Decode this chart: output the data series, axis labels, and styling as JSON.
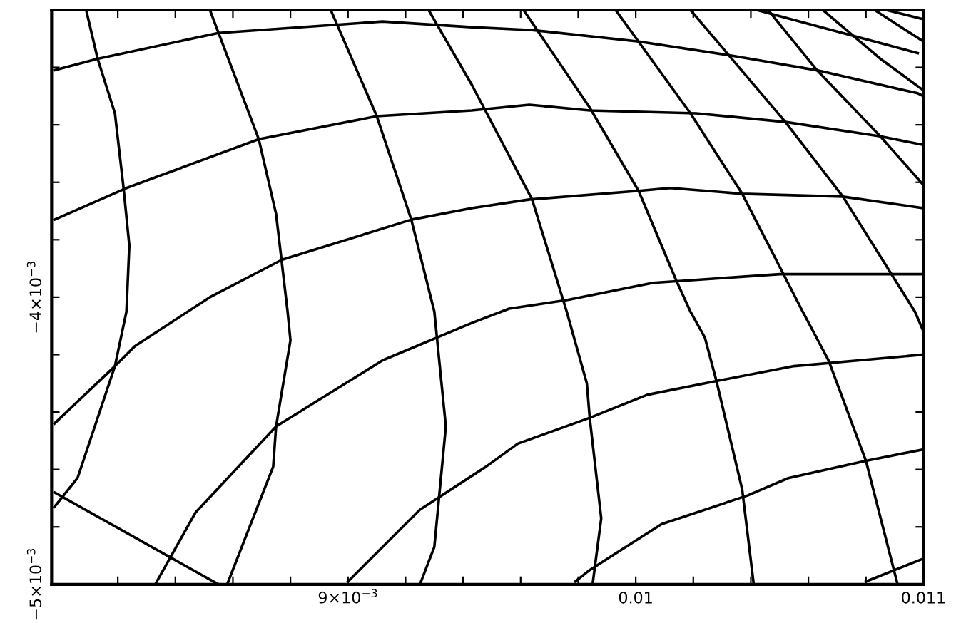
{
  "chart_data": {
    "type": "line",
    "xlim": [
      0.00797,
      0.011
    ],
    "ylim": [
      -0.005,
      -0.003
    ],
    "xticks": [
      {
        "value": 0.0082,
        "label": null
      },
      {
        "value": 0.0084,
        "label": null
      },
      {
        "value": 0.0086,
        "label": null
      },
      {
        "value": 0.0088,
        "label": null
      },
      {
        "value": 0.009,
        "label": "9×10$^{−3}$"
      },
      {
        "value": 0.0092,
        "label": null
      },
      {
        "value": 0.0094,
        "label": null
      },
      {
        "value": 0.0096,
        "label": null
      },
      {
        "value": 0.0098,
        "label": null
      },
      0.01,
      {
        "value": 0.0102,
        "label": null
      },
      {
        "value": 0.0104,
        "label": null
      },
      {
        "value": 0.0106,
        "label": null
      },
      {
        "value": 0.0108,
        "label": null
      },
      0.011
    ],
    "yticks": [
      {
        "value": -0.005,
        "label": "−5×10$^{−3}$"
      },
      {
        "value": -0.0048,
        "label": null
      },
      {
        "value": -0.0046,
        "label": null
      },
      {
        "value": -0.0044,
        "label": null
      },
      {
        "value": -0.0042,
        "label": null
      },
      {
        "value": -0.004,
        "label": "−4×10$^{−3}$"
      },
      {
        "value": -0.0038,
        "label": null
      },
      {
        "value": -0.0036,
        "label": null
      },
      {
        "value": -0.0034,
        "label": null
      },
      {
        "value": -0.0032,
        "label": null
      }
    ],
    "grid": false,
    "legend": false,
    "marker": "none",
    "line_style": "solid",
    "series": [
      {
        "color": "#000000",
        "x": [
          0.01042,
          0.01098
        ],
        "values": [
          -0.003,
          -0.00315
        ]
      },
      {
        "color": "#000000",
        "x": [
          0.01087,
          0.01099
        ],
        "values": [
          -0.003,
          -0.00303
        ]
      },
      {
        "color": "#000000",
        "x": [
          0.00798,
          0.00813,
          0.00855,
          0.00912,
          0.00943,
          0.00964,
          0.01001,
          0.01034,
          0.01063,
          0.01098,
          0.011
        ],
        "values": [
          -0.00321,
          -0.00317,
          -0.00308,
          -0.00304,
          -0.00306,
          -0.00307,
          -0.00311,
          -0.00316,
          -0.00321,
          -0.00329,
          -0.0033
        ]
      },
      {
        "color": "#000000",
        "x": [
          0.00798,
          0.00823,
          0.00869,
          0.0091,
          0.00943,
          0.00963,
          0.00984,
          0.01021,
          0.01052,
          0.01085,
          0.011
        ],
        "values": [
          -0.00373,
          -0.00362,
          -0.00345,
          -0.00337,
          -0.00335,
          -0.00333,
          -0.00335,
          -0.00336,
          -0.00339,
          -0.00344,
          -0.00347
        ]
      },
      {
        "color": "#000000",
        "x": [
          0.00798,
          0.00819,
          0.00826,
          0.00852,
          0.00877,
          0.00922,
          0.00943,
          0.00963,
          0.01001,
          0.01012,
          0.01037,
          0.01072,
          0.011
        ],
        "values": [
          -0.00444,
          -0.00424,
          -0.00417,
          -0.004,
          -0.00387,
          -0.00373,
          -0.00369,
          -0.00366,
          -0.00363,
          -0.00362,
          -0.00364,
          -0.00365,
          -0.00369
        ]
      },
      {
        "color": "#000000",
        "x": [
          0.00833,
          0.00847,
          0.00875,
          0.00912,
          0.00943,
          0.00956,
          0.00976,
          0.01006,
          0.0105,
          0.01062,
          0.011
        ],
        "values": [
          -0.005,
          -0.00475,
          -0.00445,
          -0.00422,
          -0.00409,
          -0.00404,
          -0.00401,
          -0.00395,
          -0.00392,
          -0.00392,
          -0.00392
        ]
      },
      {
        "color": "#000000",
        "x": [
          0.009,
          0.00925,
          0.00948,
          0.00959,
          0.00984,
          0.01004,
          0.01029,
          0.01055,
          0.011
        ],
        "values": [
          -0.00499,
          -0.00474,
          -0.00459,
          -0.00451,
          -0.00442,
          -0.00434,
          -0.00429,
          -0.00424,
          -0.0042
        ]
      },
      {
        "color": "#000000",
        "x": [
          0.00979,
          0.00984,
          0.01009,
          0.01039,
          0.01053,
          0.0108,
          0.011
        ],
        "values": [
          -0.00499,
          -0.00495,
          -0.00479,
          -0.00469,
          -0.00463,
          -0.00457,
          -0.00453
        ]
      },
      {
        "color": "#000000",
        "x": [
          0.0108,
          0.0109,
          0.011
        ],
        "values": [
          -0.00499,
          -0.00495,
          -0.00491
        ]
      },
      {
        "color": "#000000",
        "x": [
          0.00798,
          0.00855
        ],
        "values": [
          -0.00468,
          -0.005
        ]
      },
      {
        "color": "#000000",
        "x": [
          0.00809,
          0.00813,
          0.00819,
          0.00822,
          0.00824,
          0.00823,
          0.00819,
          0.00806,
          0.00798
        ],
        "values": [
          -0.003,
          -0.00317,
          -0.00336,
          -0.00362,
          -0.00382,
          -0.00405,
          -0.00424,
          -0.00463,
          -0.00473
        ]
      },
      {
        "color": "#000000",
        "x": [
          0.00852,
          0.00855,
          0.00869,
          0.00875,
          0.00879,
          0.0088,
          0.00875,
          0.00874,
          0.00858
        ],
        "values": [
          -0.003,
          -0.00308,
          -0.00345,
          -0.00371,
          -0.00405,
          -0.00415,
          -0.00445,
          -0.00459,
          -0.005
        ]
      },
      {
        "color": "#000000",
        "x": [
          0.00894,
          0.0091,
          0.00922,
          0.0093,
          0.00931,
          0.00934,
          0.0093,
          0.00925
        ],
        "values": [
          -0.003,
          -0.00337,
          -0.00373,
          -0.00405,
          -0.00415,
          -0.00445,
          -0.00487,
          -0.005
        ]
      },
      {
        "color": "#000000",
        "x": [
          0.00928,
          0.00943,
          0.00964,
          0.00976,
          0.00983,
          0.00984,
          0.00988,
          0.00985
        ],
        "values": [
          -0.003,
          -0.00326,
          -0.00366,
          -0.00405,
          -0.0043,
          -0.00442,
          -0.00477,
          -0.005
        ]
      },
      {
        "color": "#000000",
        "x": [
          0.00961,
          0.00984,
          0.01001,
          0.01014,
          0.01019,
          0.01024,
          0.01028,
          0.01037,
          0.01041
        ],
        "values": [
          -0.003,
          -0.00334,
          -0.00363,
          -0.00394,
          -0.00405,
          -0.00414,
          -0.00429,
          -0.00467,
          -0.005
        ]
      },
      {
        "color": "#000000",
        "x": [
          0.00993,
          0.01019,
          0.01037,
          0.01058,
          0.01067,
          0.0108,
          0.01091
        ],
        "values": [
          -0.003,
          -0.00336,
          -0.00364,
          -0.00405,
          -0.00422,
          -0.00457,
          -0.005
        ]
      },
      {
        "color": "#000000",
        "x": [
          0.01019,
          0.01052,
          0.01072,
          0.01097,
          0.011
        ],
        "values": [
          -0.003,
          -0.00339,
          -0.00365,
          -0.00405,
          -0.00412
        ]
      },
      {
        "color": "#000000",
        "x": [
          0.01046,
          0.01063,
          0.01085,
          0.011
        ],
        "values": [
          -0.003,
          -0.00321,
          -0.00344,
          -0.00361
        ]
      },
      {
        "color": "#000000",
        "x": [
          0.01065,
          0.01085,
          0.011
        ],
        "values": [
          -0.003,
          -0.00317,
          -0.00328
        ]
      },
      {
        "color": "#000000",
        "x": [
          0.01083,
          0.011
        ],
        "values": [
          -0.003,
          -0.00311
        ]
      }
    ]
  }
}
